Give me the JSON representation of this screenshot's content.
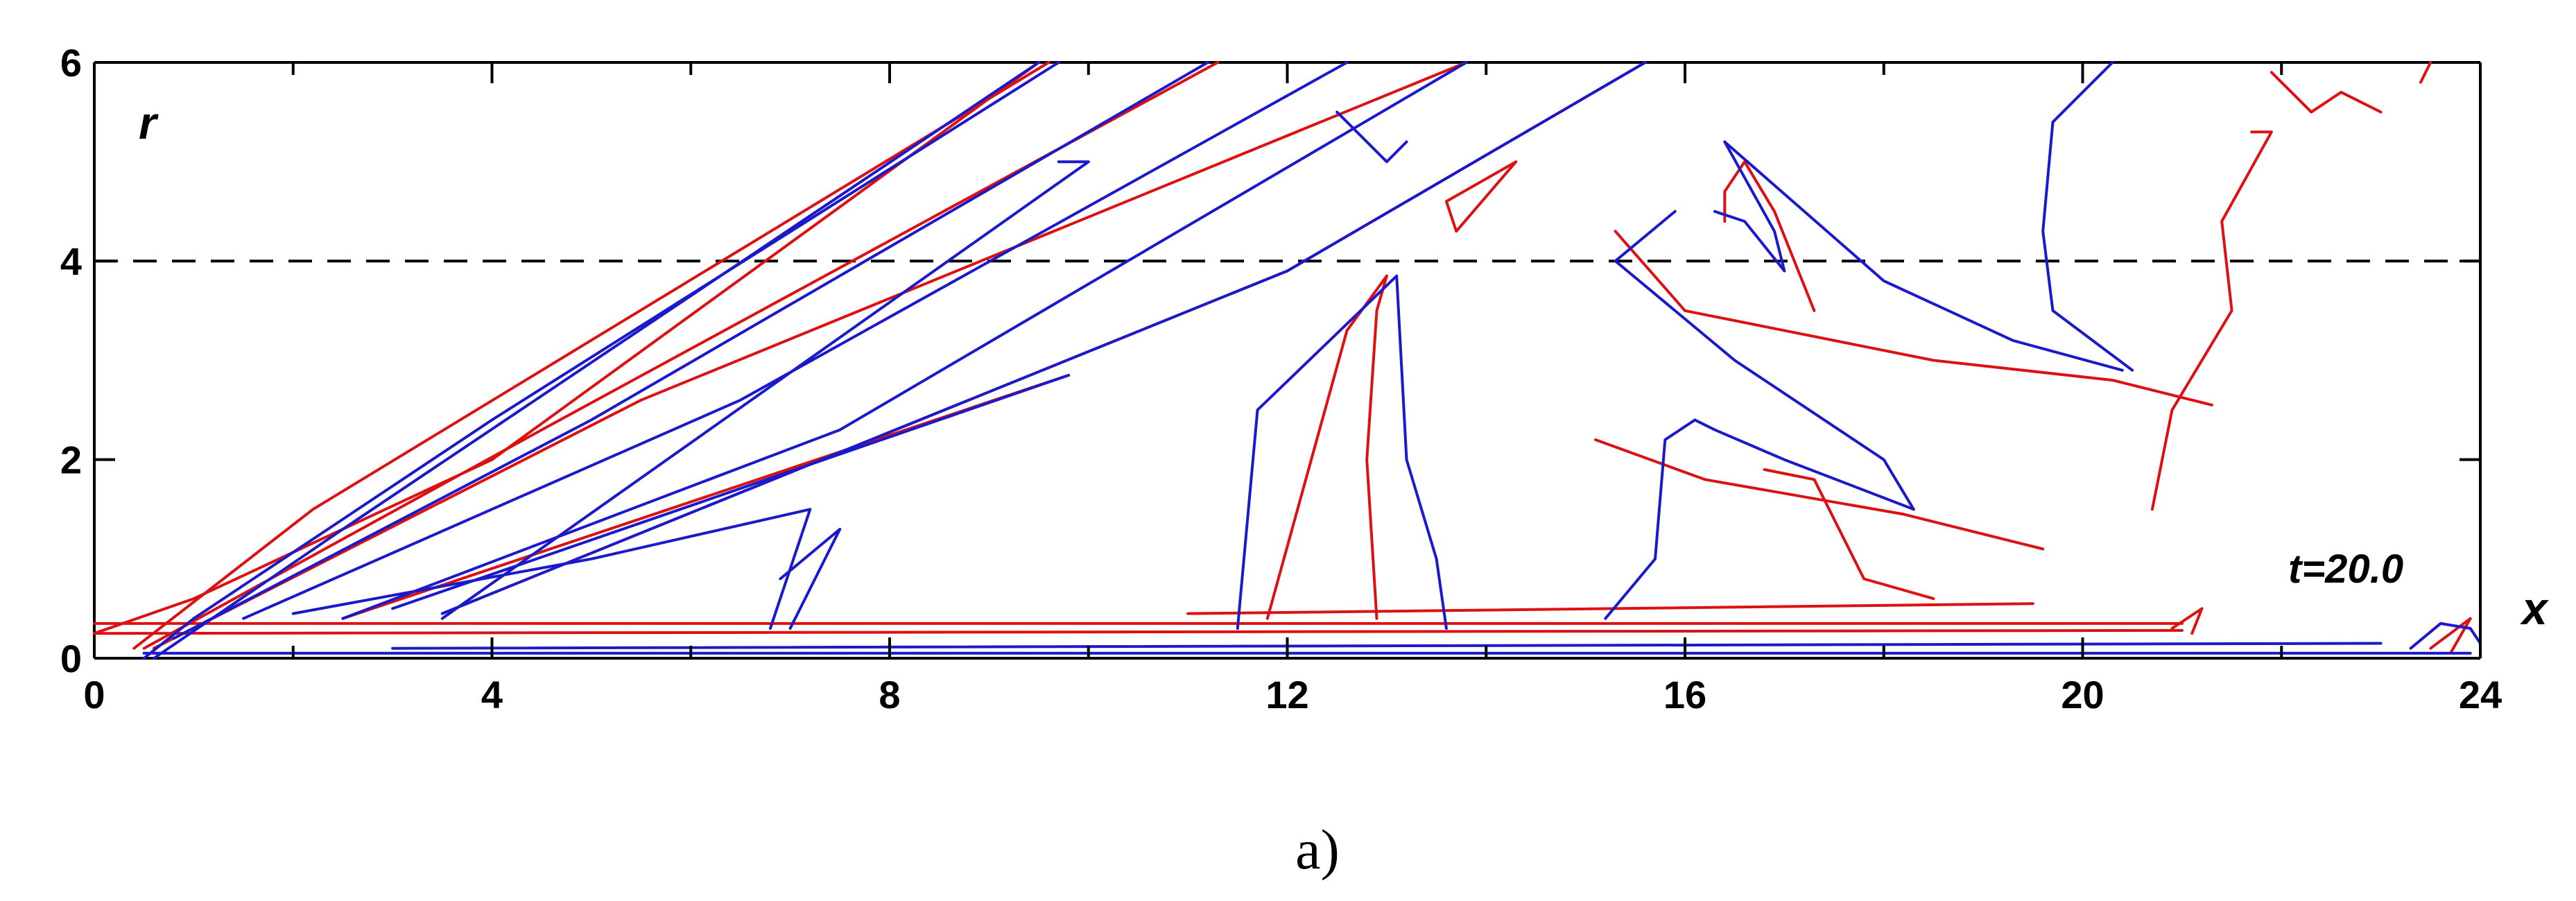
{
  "chart_data": {
    "type": "line",
    "title": "",
    "xlabel": "x",
    "ylabel": "r",
    "xlim": [
      0,
      24
    ],
    "ylim": [
      0,
      6
    ],
    "x_ticks": [
      0,
      4,
      8,
      12,
      16,
      20,
      24
    ],
    "x_tick_labels": [
      "0",
      "4",
      "8",
      "12",
      "16",
      "20",
      "24"
    ],
    "y_ticks": [
      0,
      2,
      4,
      6
    ],
    "y_tick_labels": [
      "0",
      "2",
      "4",
      "6"
    ],
    "reference_line": {
      "r": 4,
      "style": "dashed",
      "color": "#000000"
    },
    "annotation": "t=20.0",
    "caption": "a)",
    "grid": false,
    "legend": "none",
    "series": [
      {
        "color": "#dd1111",
        "lines": [
          [
            [
              0,
              0.25
            ],
            [
              1.0,
              0.6
            ],
            [
              4,
              2.0
            ],
            [
              9.5,
              6.0
            ]
          ],
          [
            [
              0.4,
              0.1
            ],
            [
              2.2,
              1.5
            ],
            [
              9.6,
              6.0
            ]
          ],
          [
            [
              0.5,
              0.1
            ],
            [
              4.5,
              2.3
            ],
            [
              11.3,
              6.0
            ]
          ],
          [
            [
              0.6,
              0.1
            ],
            [
              5.5,
              2.6
            ],
            [
              13.8,
              6.0
            ]
          ],
          [
            [
              2.5,
              0.4
            ],
            [
              9.8,
              2.85
            ]
          ],
          [
            [
              3.5,
              0.45
            ],
            [
              12.0,
              3.9
            ],
            [
              15.6,
              6.0
            ]
          ],
          [
            [
              0,
              0.35
            ],
            [
              21.0,
              0.35
            ]
          ],
          [
            [
              0,
              0.25
            ],
            [
              21.0,
              0.28
            ]
          ],
          [
            [
              11.0,
              0.45
            ],
            [
              19.5,
              0.55
            ]
          ],
          [
            [
              13.7,
              4.3
            ],
            [
              14.3,
              5.0
            ],
            [
              13.6,
              4.6
            ],
            [
              13.7,
              4.3
            ]
          ],
          [
            [
              11.8,
              0.4
            ],
            [
              12.6,
              3.3
            ],
            [
              13.0,
              3.85
            ],
            [
              12.9,
              3.5
            ],
            [
              12.8,
              2.0
            ],
            [
              12.9,
              0.4
            ]
          ],
          [
            [
              16.4,
              4.4
            ],
            [
              16.4,
              4.7
            ],
            [
              16.6,
              5.0
            ],
            [
              16.9,
              4.5
            ],
            [
              17.3,
              3.5
            ]
          ],
          [
            [
              15.3,
              4.3
            ],
            [
              16.0,
              3.5
            ],
            [
              18.5,
              3.0
            ],
            [
              20.3,
              2.8
            ],
            [
              21.3,
              2.55
            ]
          ],
          [
            [
              15.1,
              2.2
            ],
            [
              16.2,
              1.8
            ],
            [
              18.2,
              1.45
            ],
            [
              19.6,
              1.1
            ]
          ],
          [
            [
              16.8,
              1.9
            ],
            [
              17.3,
              1.8
            ],
            [
              17.8,
              0.8
            ],
            [
              18.5,
              0.6
            ]
          ],
          [
            [
              20.9,
              0.3
            ],
            [
              21.2,
              0.5
            ],
            [
              21.1,
              0.25
            ]
          ],
          [
            [
              20.7,
              1.5
            ],
            [
              20.9,
              2.5
            ],
            [
              21.5,
              3.5
            ],
            [
              21.4,
              4.4
            ],
            [
              21.9,
              5.3
            ],
            [
              21.7,
              5.3
            ]
          ],
          [
            [
              21.9,
              5.9
            ],
            [
              22.3,
              5.5
            ],
            [
              22.6,
              5.7
            ],
            [
              23.0,
              5.5
            ]
          ],
          [
            [
              23.5,
              0.1
            ],
            [
              23.9,
              0.4
            ],
            [
              23.7,
              0.05
            ]
          ],
          [
            [
              23.5,
              6.0
            ],
            [
              23.4,
              5.8
            ]
          ]
        ]
      },
      {
        "color": "#1a1acc",
        "lines": [
          [
            [
              0.5,
              0.0
            ],
            [
              1.0,
              0.4
            ],
            [
              4.0,
              2.4
            ],
            [
              9.7,
              6.0
            ]
          ],
          [
            [
              0.6,
              0.0
            ],
            [
              2.5,
              1.3
            ],
            [
              9.5,
              6.0
            ]
          ],
          [
            [
              0.8,
              0.2
            ],
            [
              5.0,
              2.4
            ],
            [
              11.2,
              6.0
            ]
          ],
          [
            [
              1.5,
              0.4
            ],
            [
              6.5,
              2.6
            ],
            [
              12.6,
              6.0
            ]
          ],
          [
            [
              2.5,
              0.4
            ],
            [
              7.5,
              2.3
            ],
            [
              13.8,
              6.0
            ]
          ],
          [
            [
              3.5,
              0.4
            ],
            [
              10.0,
              5.0
            ],
            [
              9.7,
              5.0
            ]
          ],
          [
            [
              3.0,
              0.5
            ],
            [
              9.8,
              2.85
            ]
          ],
          [
            [
              3.5,
              0.45
            ],
            [
              12.0,
              3.9
            ],
            [
              15.6,
              6.0
            ]
          ],
          [
            [
              2.0,
              0.45
            ],
            [
              5.0,
              1.0
            ],
            [
              7.2,
              1.5
            ],
            [
              6.8,
              0.3
            ]
          ],
          [
            [
              7.0,
              0.3
            ],
            [
              7.5,
              1.3
            ],
            [
              6.9,
              0.8
            ]
          ],
          [
            [
              0.5,
              0.05
            ],
            [
              23.9,
              0.05
            ]
          ],
          [
            [
              3.0,
              0.1
            ],
            [
              23.0,
              0.15
            ]
          ],
          [
            [
              11.5,
              0.3
            ],
            [
              11.7,
              2.5
            ],
            [
              13.1,
              3.85
            ],
            [
              13.2,
              2.0
            ],
            [
              13.5,
              1.0
            ],
            [
              13.6,
              0.3
            ]
          ],
          [
            [
              15.2,
              0.4
            ],
            [
              15.7,
              1.0
            ],
            [
              15.8,
              2.2
            ],
            [
              16.1,
              2.4
            ],
            [
              16.3,
              2.3
            ],
            [
              17.0,
              2.0
            ],
            [
              18.3,
              1.5
            ]
          ],
          [
            [
              15.9,
              4.5
            ],
            [
              15.3,
              4.0
            ],
            [
              16.5,
              3.0
            ],
            [
              18.0,
              2.0
            ],
            [
              18.3,
              1.5
            ]
          ],
          [
            [
              16.4,
              5.2
            ],
            [
              16.9,
              4.3
            ],
            [
              17.0,
              3.9
            ],
            [
              16.6,
              4.4
            ],
            [
              16.3,
              4.5
            ]
          ],
          [
            [
              16.4,
              5.2
            ],
            [
              18.0,
              3.8
            ],
            [
              19.3,
              3.2
            ],
            [
              20.4,
              2.9
            ]
          ],
          [
            [
              20.5,
              2.9
            ],
            [
              19.7,
              3.5
            ],
            [
              19.6,
              4.3
            ],
            [
              19.7,
              5.4
            ],
            [
              20.2,
              5.9
            ],
            [
              20.3,
              6.0
            ]
          ],
          [
            [
              12.5,
              5.5
            ],
            [
              13.0,
              5.0
            ],
            [
              13.2,
              5.2
            ]
          ],
          [
            [
              23.3,
              0.1
            ],
            [
              23.6,
              0.35
            ],
            [
              23.9,
              0.3
            ],
            [
              24.0,
              0.15
            ]
          ]
        ]
      }
    ]
  }
}
